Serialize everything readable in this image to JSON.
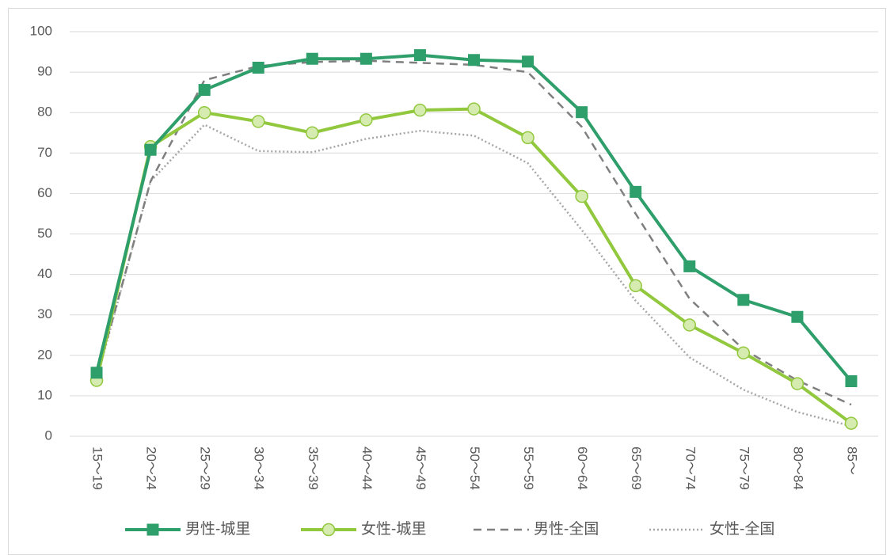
{
  "chart_data": {
    "type": "line",
    "categories": [
      "15～19",
      "20～24",
      "25～29",
      "30～34",
      "35～39",
      "40～44",
      "45～49",
      "50～54",
      "55～59",
      "60～64",
      "65～69",
      "70～74",
      "75～79",
      "80～84",
      "85～"
    ],
    "series": [
      {
        "name": "男性-城里",
        "color": "#2e9e6a",
        "marker": "square",
        "values": [
          15.7,
          70.8,
          85.6,
          91.1,
          93.3,
          93.3,
          94.2,
          93.0,
          92.6,
          80.1,
          60.4,
          42.0,
          33.7,
          29.5,
          13.6
        ]
      },
      {
        "name": "女性-城里",
        "color": "#92c83e",
        "marker": "circle",
        "marker_fill": "#d6ebb0",
        "values": [
          13.8,
          71.6,
          80.0,
          77.8,
          75.0,
          78.2,
          80.6,
          80.9,
          73.8,
          59.3,
          37.2,
          27.5,
          20.6,
          13.0,
          3.2
        ]
      },
      {
        "name": "男性-全国",
        "color": "#7f7f7f",
        "dash": "dashed",
        "values": [
          14.5,
          63,
          88,
          91.5,
          92.5,
          92.8,
          92.3,
          91.8,
          90,
          76.5,
          55,
          34,
          21.5,
          13.8,
          7.8
        ]
      },
      {
        "name": "女性-全国",
        "color": "#a6a6a6",
        "dash": "dotted",
        "values": [
          14,
          63,
          77,
          70.5,
          70.2,
          73.5,
          75.5,
          74.3,
          67.5,
          51,
          33.5,
          19.5,
          11.5,
          6,
          2.5
        ]
      }
    ],
    "ylim": [
      0,
      100
    ],
    "yticks": [
      0,
      10,
      20,
      30,
      40,
      50,
      60,
      70,
      80,
      90,
      100
    ],
    "grid": true,
    "legend": "bottom"
  }
}
